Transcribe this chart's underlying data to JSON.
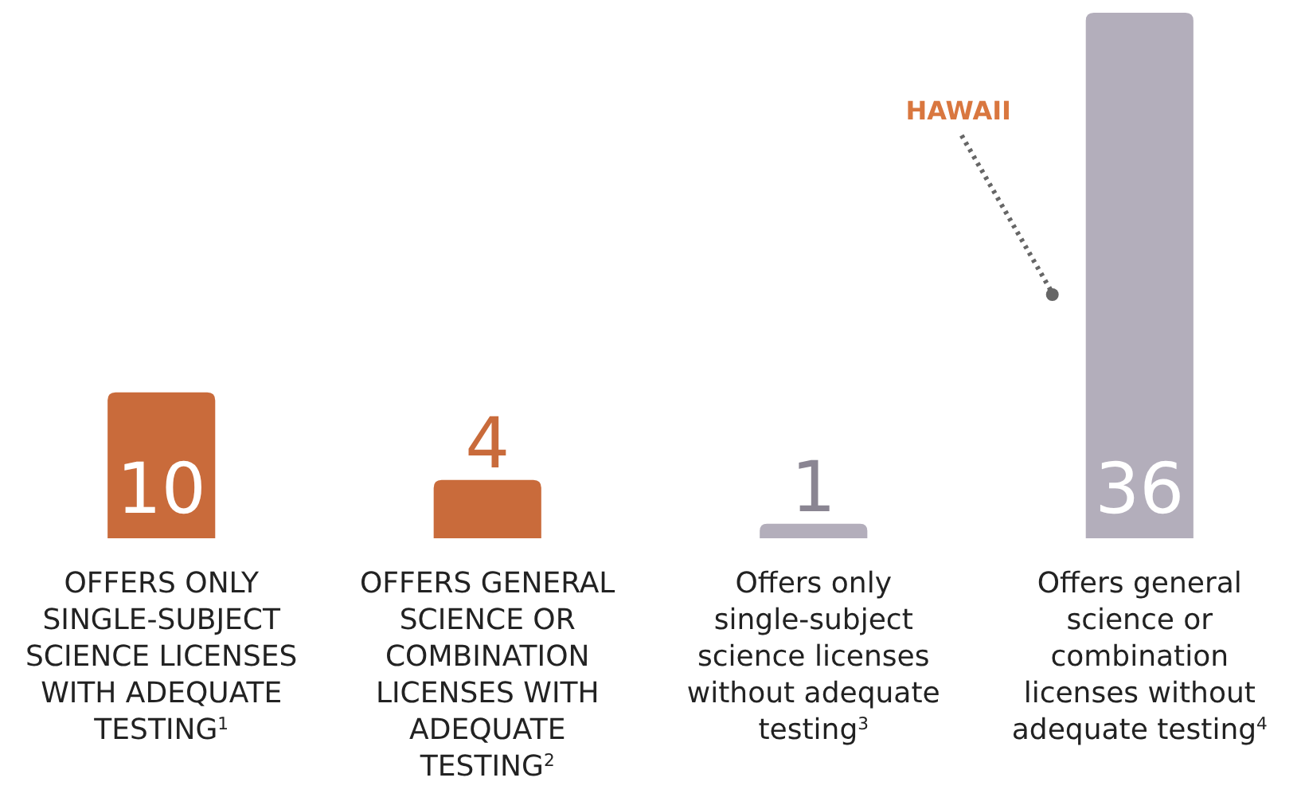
{
  "chart_data": {
    "type": "bar",
    "categories": [
      "OFFERS ONLY SINGLE-SUBJECT SCIENCE LICENSES WITH ADEQUATE TESTING$^{1}$",
      "OFFERS GENERAL SCIENCE OR COMBINATION LICENSES WITH ADEQUATE TESTING$^{2}$",
      "Offers only single-subject science licenses without adequate testing$^{3}$",
      "Offers general science or combination licenses without adequate testing$^{4}$"
    ],
    "values": [
      10,
      4,
      1,
      36
    ],
    "colors": [
      "#c96b3b",
      "#c96b3b",
      "#b3aebb",
      "#b3aebb"
    ],
    "data_labels": true,
    "annotations": [
      "HAWAII"
    ]
  }
}
